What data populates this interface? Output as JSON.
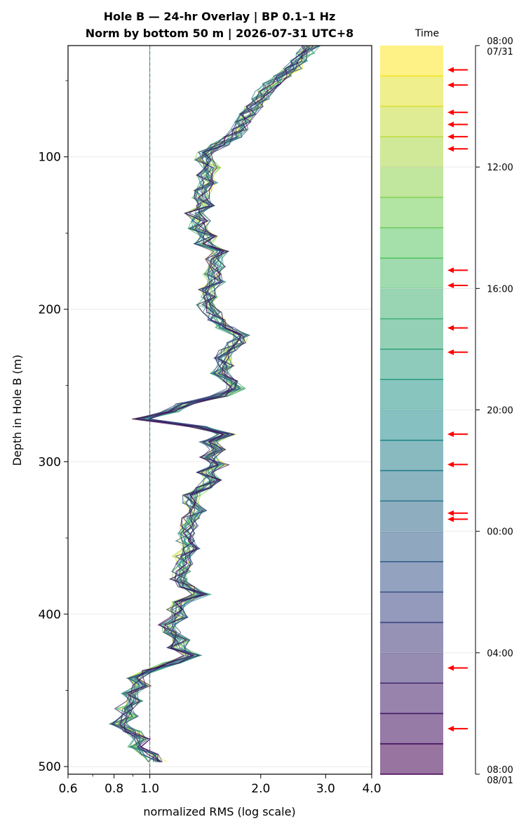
{
  "chart_data": {
    "type": "line",
    "title_line1": "Hole B — 24-hr Overlay  |  BP 0.1–1 Hz",
    "title_line2": "Norm by bottom 50 m  |  2026-07-31 UTC+8",
    "xlabel": "normalized RMS  (log scale)",
    "ylabel": "Depth in Hole B (m)",
    "x_scale": "log",
    "xlim": [
      0.6,
      4.0
    ],
    "ylim": [
      505,
      27
    ],
    "x_ticks": [
      0.6,
      0.8,
      1.0,
      2.0,
      3.0,
      4.0
    ],
    "x_tick_labels": [
      "0.6",
      "0.8",
      "1.0",
      "2.0",
      "3.0",
      "4.0"
    ],
    "y_ticks": [
      100,
      200,
      300,
      400,
      500
    ],
    "y_tick_labels": [
      "100",
      "200",
      "300",
      "400",
      "500"
    ],
    "grid": true,
    "reference_line_x": 1.0,
    "depth_step_m": 5,
    "consensus_profile": {
      "depth": [
        27,
        32,
        37,
        42,
        47,
        52,
        57,
        62,
        67,
        72,
        77,
        82,
        87,
        92,
        97,
        102,
        107,
        112,
        117,
        122,
        127,
        132,
        137,
        142,
        147,
        152,
        157,
        162,
        167,
        172,
        177,
        182,
        187,
        192,
        197,
        202,
        207,
        212,
        217,
        222,
        227,
        232,
        237,
        242,
        247,
        252,
        257,
        262,
        267,
        272,
        277,
        282,
        287,
        292,
        297,
        302,
        307,
        312,
        317,
        322,
        327,
        332,
        337,
        342,
        347,
        352,
        357,
        362,
        367,
        372,
        377,
        382,
        387,
        392,
        397,
        402,
        407,
        412,
        417,
        422,
        427,
        432,
        437,
        442,
        447,
        452,
        457,
        462,
        467,
        472,
        477,
        482,
        487,
        492,
        497
      ],
      "rms": [
        2.75,
        2.65,
        2.55,
        2.45,
        2.3,
        2.15,
        2.05,
        2.0,
        1.92,
        1.85,
        1.8,
        1.75,
        1.68,
        1.55,
        1.42,
        1.4,
        1.48,
        1.42,
        1.45,
        1.4,
        1.38,
        1.42,
        1.32,
        1.38,
        1.35,
        1.45,
        1.4,
        1.55,
        1.5,
        1.52,
        1.48,
        1.52,
        1.42,
        1.45,
        1.42,
        1.48,
        1.52,
        1.6,
        1.78,
        1.72,
        1.62,
        1.58,
        1.62,
        1.55,
        1.65,
        1.72,
        1.55,
        1.25,
        1.15,
        0.95,
        1.35,
        1.62,
        1.45,
        1.52,
        1.45,
        1.55,
        1.42,
        1.48,
        1.4,
        1.3,
        1.28,
        1.35,
        1.3,
        1.28,
        1.25,
        1.25,
        1.3,
        1.22,
        1.25,
        1.22,
        1.2,
        1.25,
        1.38,
        1.22,
        1.18,
        1.2,
        1.12,
        1.15,
        1.22,
        1.18,
        1.3,
        1.15,
        1.0,
        0.92,
        0.95,
        0.88,
        0.92,
        0.85,
        0.88,
        0.82,
        0.9,
        0.95,
        0.9,
        1.0,
        1.05
      ]
    },
    "colorbar": {
      "label": "Time",
      "num_bins": 24,
      "color_start": "#fde725",
      "color_mid": "#21918c",
      "color_end": "#440154",
      "tick_labels": [
        "08:00\n07/31",
        "12:00",
        "16:00",
        "20:00",
        "00:00",
        "04:00",
        "08:00\n08/01"
      ],
      "tick_hours": [
        0,
        4,
        8,
        12,
        16,
        20,
        24
      ],
      "marker_color": "#ff0000",
      "marker_hours": [
        0.8,
        1.3,
        2.2,
        2.6,
        3.0,
        3.4,
        7.4,
        7.9,
        9.3,
        10.1,
        12.8,
        13.8,
        15.4,
        15.6,
        20.5,
        22.5
      ]
    }
  }
}
